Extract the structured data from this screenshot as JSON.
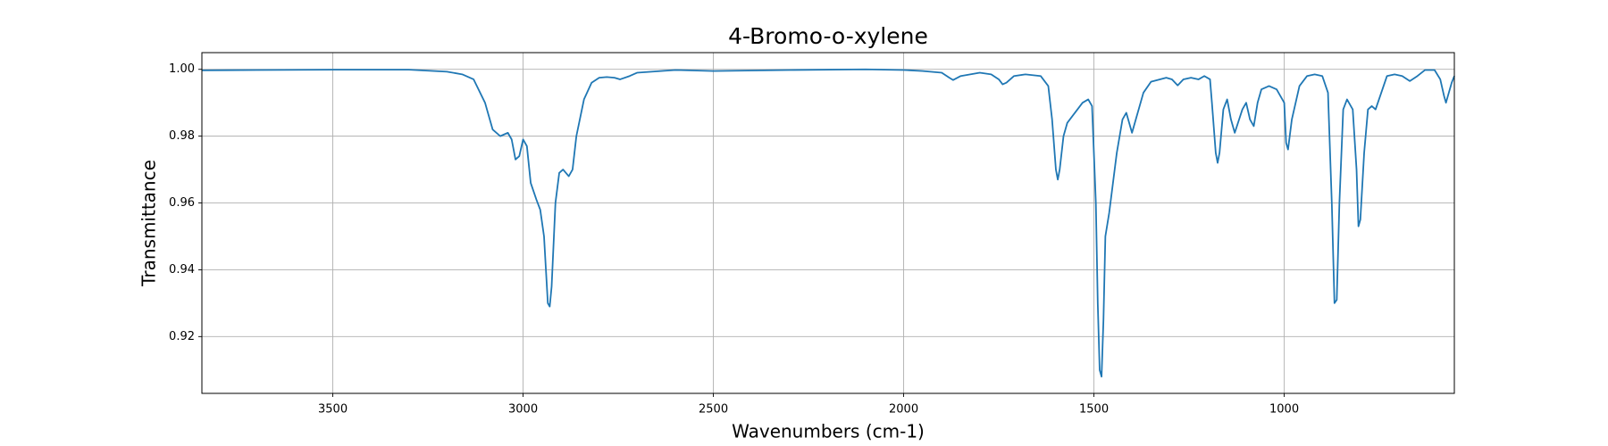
{
  "chart_data": {
    "type": "line",
    "title": "4-Bromo-o-xylene",
    "x_label": "Wavenumbers (cm-1)",
    "y_label": "Transmittance",
    "color": "#1f77b4",
    "grid": true,
    "xlim": [
      3844,
      553
    ],
    "ylim": [
      0.903,
      1.005
    ],
    "xticks": [
      3500,
      3000,
      2500,
      2000,
      1500,
      1000
    ],
    "yticks": [
      0.92,
      0.94,
      0.96,
      0.98,
      {
        "value": 1,
        "label": "1.00"
      }
    ],
    "x": [
      3844,
      3700,
      3500,
      3300,
      3200,
      3160,
      3130,
      3100,
      3080,
      3060,
      3040,
      3030,
      3020,
      3010,
      3000,
      2990,
      2980,
      2965,
      2955,
      2945,
      2940,
      2935,
      2930,
      2925,
      2915,
      2905,
      2895,
      2880,
      2870,
      2860,
      2840,
      2820,
      2800,
      2780,
      2760,
      2745,
      2720,
      2700,
      2600,
      2500,
      2300,
      2100,
      2000,
      1950,
      1900,
      1880,
      1870,
      1850,
      1800,
      1770,
      1750,
      1740,
      1730,
      1710,
      1680,
      1640,
      1620,
      1610,
      1600,
      1595,
      1590,
      1580,
      1570,
      1550,
      1530,
      1515,
      1505,
      1495,
      1490,
      1485,
      1480,
      1475,
      1470,
      1460,
      1440,
      1425,
      1415,
      1405,
      1400,
      1390,
      1370,
      1350,
      1310,
      1295,
      1280,
      1265,
      1245,
      1225,
      1210,
      1195,
      1190,
      1180,
      1175,
      1170,
      1160,
      1150,
      1140,
      1130,
      1110,
      1100,
      1090,
      1080,
      1070,
      1060,
      1040,
      1020,
      1000,
      995,
      990,
      980,
      960,
      940,
      920,
      900,
      885,
      875,
      868,
      862,
      855,
      845,
      835,
      820,
      810,
      805,
      800,
      790,
      780,
      770,
      760,
      745,
      730,
      710,
      690,
      670,
      650,
      630,
      605,
      590,
      580,
      575,
      570,
      560,
      553
    ],
    "values": [
      0.9997,
      0.9998,
      0.9999,
      0.9999,
      0.9993,
      0.9985,
      0.997,
      0.99,
      0.982,
      0.98,
      0.981,
      0.979,
      0.973,
      0.974,
      0.979,
      0.977,
      0.966,
      0.961,
      0.958,
      0.95,
      0.94,
      0.93,
      0.929,
      0.935,
      0.96,
      0.969,
      0.97,
      0.968,
      0.97,
      0.98,
      0.991,
      0.996,
      0.9975,
      0.9977,
      0.9975,
      0.997,
      0.998,
      0.999,
      0.9998,
      0.9995,
      0.9998,
      1.0,
      0.9998,
      0.9995,
      0.999,
      0.9975,
      0.9968,
      0.998,
      0.999,
      0.9985,
      0.997,
      0.9955,
      0.996,
      0.998,
      0.9985,
      0.998,
      0.995,
      0.985,
      0.97,
      0.967,
      0.97,
      0.98,
      0.984,
      0.987,
      0.99,
      0.991,
      0.989,
      0.96,
      0.93,
      0.91,
      0.908,
      0.925,
      0.95,
      0.957,
      0.975,
      0.985,
      0.987,
      0.983,
      0.981,
      0.985,
      0.993,
      0.9963,
      0.9975,
      0.997,
      0.9952,
      0.997,
      0.9975,
      0.997,
      0.998,
      0.997,
      0.99,
      0.975,
      0.972,
      0.975,
      0.988,
      0.991,
      0.985,
      0.981,
      0.988,
      0.99,
      0.985,
      0.983,
      0.99,
      0.994,
      0.995,
      0.994,
      0.99,
      0.978,
      0.976,
      0.985,
      0.995,
      0.998,
      0.9985,
      0.998,
      0.993,
      0.96,
      0.93,
      0.931,
      0.96,
      0.988,
      0.991,
      0.988,
      0.97,
      0.953,
      0.955,
      0.975,
      0.988,
      0.989,
      0.988,
      0.993,
      0.998,
      0.9985,
      0.998,
      0.9965,
      0.998,
      0.9998,
      0.9998,
      0.997,
      0.992,
      0.99,
      0.992,
      0.996,
      0.998
    ]
  }
}
